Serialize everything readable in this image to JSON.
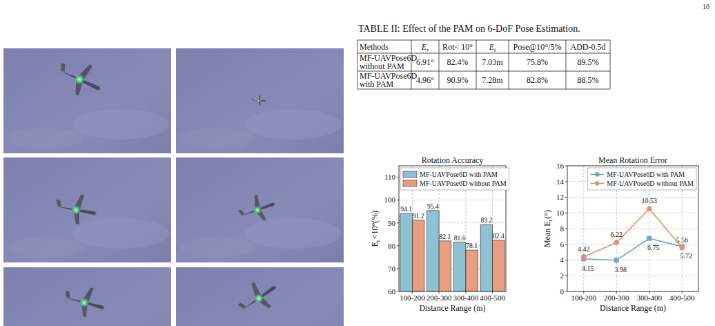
{
  "page_number": "10",
  "table": {
    "caption": "TABLE II: Effect of the PAM on 6-DoF Pose Estimation.",
    "header": [
      {
        "text": "Methods"
      },
      {
        "text": "E",
        "sub": "r"
      },
      {
        "text": "Rot< 10°"
      },
      {
        "text": "E",
        "sub": "t"
      },
      {
        "text": "Pose@10°/5%"
      },
      {
        "text": "ADD-0.5d"
      }
    ],
    "rows": [
      [
        "MF-UAVPose6D without PAM",
        "6.91°",
        "82.4%",
        "7.03m",
        "75.8%",
        "89.5%"
      ],
      [
        "MF-UAVPose6D with PAM",
        "4.96°",
        "90.9%",
        "7.28m",
        "82.8%",
        "88.5%"
      ]
    ]
  },
  "chart_data": [
    {
      "type": "bar",
      "title": "Rotation Accuracy",
      "categories": [
        "100-200",
        "200-300",
        "300-400",
        "400-500"
      ],
      "series": [
        {
          "name": "MF-UAVPose6D with PAM",
          "color": "#8fc1d4",
          "values": [
            94.1,
            95.4,
            81.6,
            89.2
          ]
        },
        {
          "name": "MF-UAVPose6D without PAM",
          "color": "#e89f80",
          "values": [
            91.2,
            82.1,
            78.1,
            82.4
          ]
        }
      ],
      "xlabel": "Distance Range (m)",
      "ylabel": {
        "text": "E",
        "sub": "r",
        "tail": "<10°(%)"
      },
      "ylim": [
        60,
        115
      ],
      "yticks": [
        60,
        70,
        80,
        90,
        100,
        110
      ],
      "grid": true,
      "legend": "upper right",
      "data_labels": true
    },
    {
      "type": "line",
      "title": "Mean Rotation Error",
      "categories": [
        "100-200",
        "200-300",
        "300-400",
        "400-500"
      ],
      "series": [
        {
          "name": "MF-UAVPose6D with PAM",
          "color": "#6fa7c2",
          "marker": "square",
          "values": [
            4.15,
            3.98,
            6.75,
            5.72
          ]
        },
        {
          "name": "MF-UAVPose6D without PAM",
          "color": "#e8916f",
          "marker": "circle",
          "values": [
            4.42,
            6.22,
            10.53,
            5.56
          ]
        }
      ],
      "xlabel": "Distance Range (m)",
      "ylabel": {
        "text": "Mean E",
        "sub": "r",
        "tail": "(°)"
      },
      "ylim": [
        0,
        16
      ],
      "yticks": [
        0,
        2,
        4,
        6,
        8,
        10,
        12,
        14,
        16
      ],
      "grid": true,
      "legend": "upper right",
      "data_labels": true
    }
  ]
}
